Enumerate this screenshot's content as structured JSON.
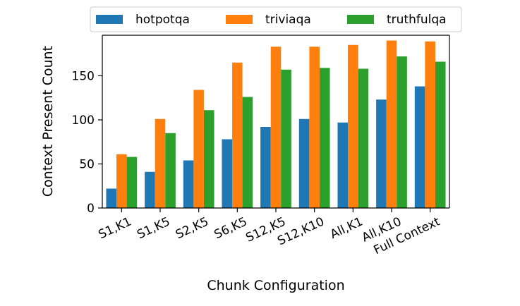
{
  "chart_data": {
    "type": "bar",
    "title": "",
    "xlabel": "Chunk Configuration",
    "ylabel": "Context Present Count",
    "categories": [
      "S1,K1",
      "S1,K5",
      "S2,K5",
      "S6,K5",
      "S12,K5",
      "S12,K10",
      "All,K1",
      "All,K10",
      "Full Context"
    ],
    "series": [
      {
        "name": "hotpotqa",
        "color": "#1f77b4",
        "values": [
          22,
          41,
          54,
          78,
          92,
          101,
          97,
          123,
          138
        ]
      },
      {
        "name": "triviaqa",
        "color": "#ff7f0e",
        "values": [
          61,
          101,
          134,
          165,
          183,
          183,
          185,
          190,
          189
        ]
      },
      {
        "name": "truthfulqa",
        "color": "#2ca02c",
        "values": [
          58,
          85,
          111,
          126,
          157,
          159,
          158,
          172,
          166
        ]
      }
    ],
    "ylim": [
      0,
      196
    ],
    "yticks": [
      0,
      50,
      100,
      150
    ],
    "grid": false,
    "legend_position": "top-center"
  }
}
